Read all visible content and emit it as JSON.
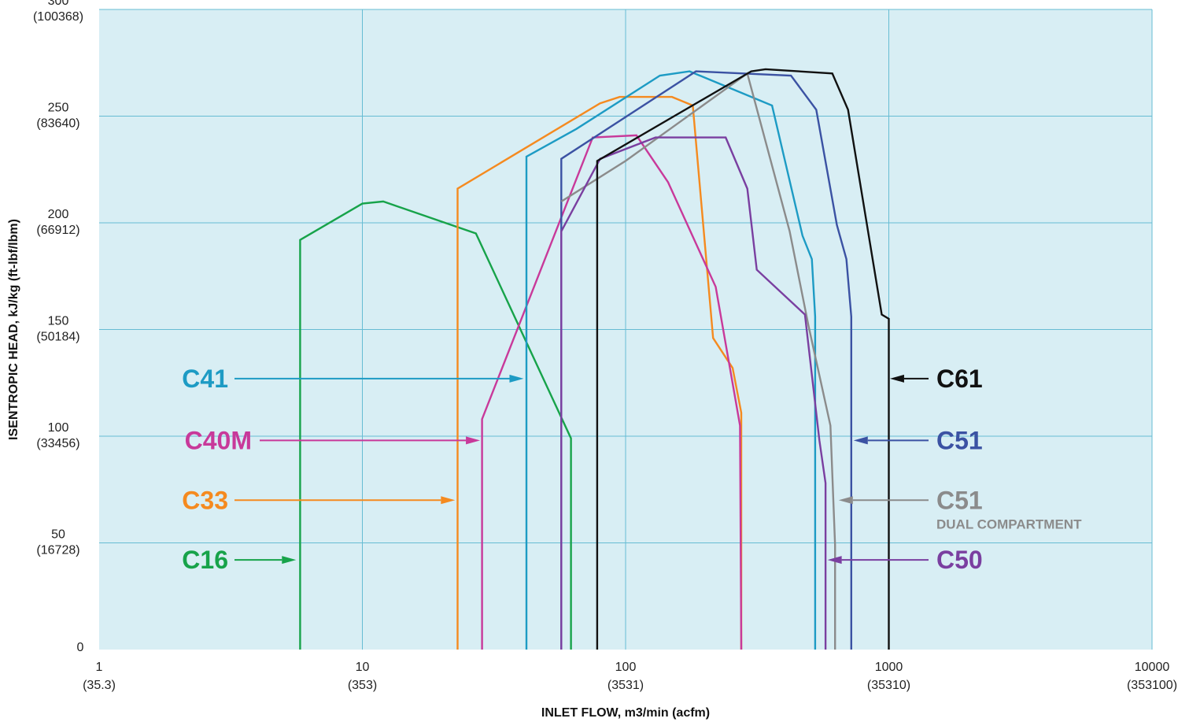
{
  "chart_data": {
    "type": "line",
    "xlabel": "INLET FLOW, m3/min (acfm)",
    "ylabel": "ISENTROPIC HEAD, kJ/kg (ft-lbf/lbm)",
    "x_scale": "log",
    "xlim": [
      1,
      10000
    ],
    "ylim": [
      0,
      300
    ],
    "grid": true,
    "x_ticks": [
      {
        "value": 1,
        "label": "1",
        "sublabel": "(35.3)"
      },
      {
        "value": 10,
        "label": "10",
        "sublabel": "(353)"
      },
      {
        "value": 100,
        "label": "100",
        "sublabel": "(3531)"
      },
      {
        "value": 1000,
        "label": "1000",
        "sublabel": "(35310)"
      },
      {
        "value": 10000,
        "label": "10000",
        "sublabel": "(353100)"
      }
    ],
    "y_ticks": [
      {
        "value": 0,
        "label": "0",
        "sublabel": ""
      },
      {
        "value": 50,
        "label": "50",
        "sublabel": "(16728)"
      },
      {
        "value": 100,
        "label": "100",
        "sublabel": "(33456)"
      },
      {
        "value": 150,
        "label": "150",
        "sublabel": "(50184)"
      },
      {
        "value": 200,
        "label": "200",
        "sublabel": "(66912)"
      },
      {
        "value": 250,
        "label": "250",
        "sublabel": "(83640)"
      },
      {
        "value": 300,
        "label": "300",
        "sublabel": "(100368)"
      }
    ],
    "series": [
      {
        "name": "C16",
        "color": "#17a34a",
        "points": [
          [
            5.8,
            0
          ],
          [
            5.8,
            192
          ],
          [
            10,
            209
          ],
          [
            12,
            210
          ],
          [
            27,
            195
          ],
          [
            62,
            99
          ],
          [
            62,
            0
          ]
        ]
      },
      {
        "name": "C33",
        "color": "#f58a1f",
        "points": [
          [
            23,
            0
          ],
          [
            23,
            216
          ],
          [
            80,
            256
          ],
          [
            95,
            259
          ],
          [
            150,
            259
          ],
          [
            180,
            255
          ],
          [
            215,
            146
          ],
          [
            255,
            132
          ],
          [
            275,
            111
          ],
          [
            275,
            0
          ]
        ]
      },
      {
        "name": "C40M",
        "color": "#c8399a",
        "points": [
          [
            28.5,
            0
          ],
          [
            28.5,
            108
          ],
          [
            75,
            240
          ],
          [
            110,
            241
          ],
          [
            145,
            219
          ],
          [
            220,
            170
          ],
          [
            272,
            105
          ],
          [
            275,
            0
          ]
        ]
      },
      {
        "name": "C41",
        "color": "#1d9bc4",
        "points": [
          [
            42,
            0
          ],
          [
            42,
            231
          ],
          [
            65,
            244
          ],
          [
            135,
            269
          ],
          [
            175,
            271
          ],
          [
            360,
            255
          ],
          [
            470,
            194
          ],
          [
            510,
            183
          ],
          [
            525,
            156
          ],
          [
            525,
            0
          ]
        ]
      },
      {
        "name": "C51",
        "color": "#3b52a3",
        "points": [
          [
            57,
            0
          ],
          [
            57,
            230
          ],
          [
            185,
            271
          ],
          [
            425,
            269
          ],
          [
            530,
            253
          ],
          [
            635,
            199
          ],
          [
            690,
            183
          ],
          [
            720,
            156
          ],
          [
            720,
            0
          ]
        ]
      },
      {
        "name": "C51 DUAL COMPARTMENT",
        "color": "#8b8b8b",
        "points": [
          [
            57,
            210
          ],
          [
            100,
            229
          ],
          [
            290,
            270
          ],
          [
            420,
            196
          ],
          [
            495,
            152
          ],
          [
            600,
            105
          ],
          [
            625,
            49
          ],
          [
            625,
            0
          ]
        ]
      },
      {
        "name": "C50",
        "color": "#7a3fa0",
        "points": [
          [
            57,
            0
          ],
          [
            57,
            196
          ],
          [
            80,
            230
          ],
          [
            130,
            240
          ],
          [
            240,
            240
          ],
          [
            290,
            216
          ],
          [
            315,
            178
          ],
          [
            480,
            157
          ],
          [
            545,
            98
          ],
          [
            575,
            78
          ],
          [
            575,
            0
          ]
        ]
      },
      {
        "name": "C61",
        "color": "#111111",
        "points": [
          [
            78,
            0
          ],
          [
            78,
            229
          ],
          [
            300,
            271
          ],
          [
            340,
            272
          ],
          [
            610,
            270
          ],
          [
            700,
            253
          ],
          [
            940,
            157
          ],
          [
            1000,
            155
          ],
          [
            1000,
            0
          ]
        ]
      }
    ],
    "annotations": [
      {
        "label": "C41",
        "sublabel": "",
        "color": "#1d9bc4",
        "side": "left",
        "target": [
          41,
          127
        ]
      },
      {
        "label": "C40M",
        "sublabel": "",
        "color": "#c8399a",
        "side": "left",
        "target": [
          28,
          98
        ]
      },
      {
        "label": "C33",
        "sublabel": "",
        "color": "#f58a1f",
        "side": "left",
        "target": [
          22.5,
          70
        ]
      },
      {
        "label": "C16",
        "sublabel": "",
        "color": "#17a34a",
        "side": "left",
        "target": [
          5.6,
          42
        ]
      },
      {
        "label": "C61",
        "sublabel": "",
        "color": "#111111",
        "side": "right",
        "target": [
          1010,
          127
        ]
      },
      {
        "label": "C51",
        "sublabel": "",
        "color": "#3b52a3",
        "side": "right",
        "target": [
          735,
          98
        ]
      },
      {
        "label": "C51",
        "sublabel": "DUAL COMPARTMENT",
        "color": "#8b8b8b",
        "side": "right",
        "target": [
          645,
          70
        ]
      },
      {
        "label": "C50",
        "sublabel": "",
        "color": "#7a3fa0",
        "side": "right",
        "target": [
          585,
          42
        ]
      }
    ],
    "plot_background": "#d8eef4",
    "grid_color": "#66bcd3"
  }
}
